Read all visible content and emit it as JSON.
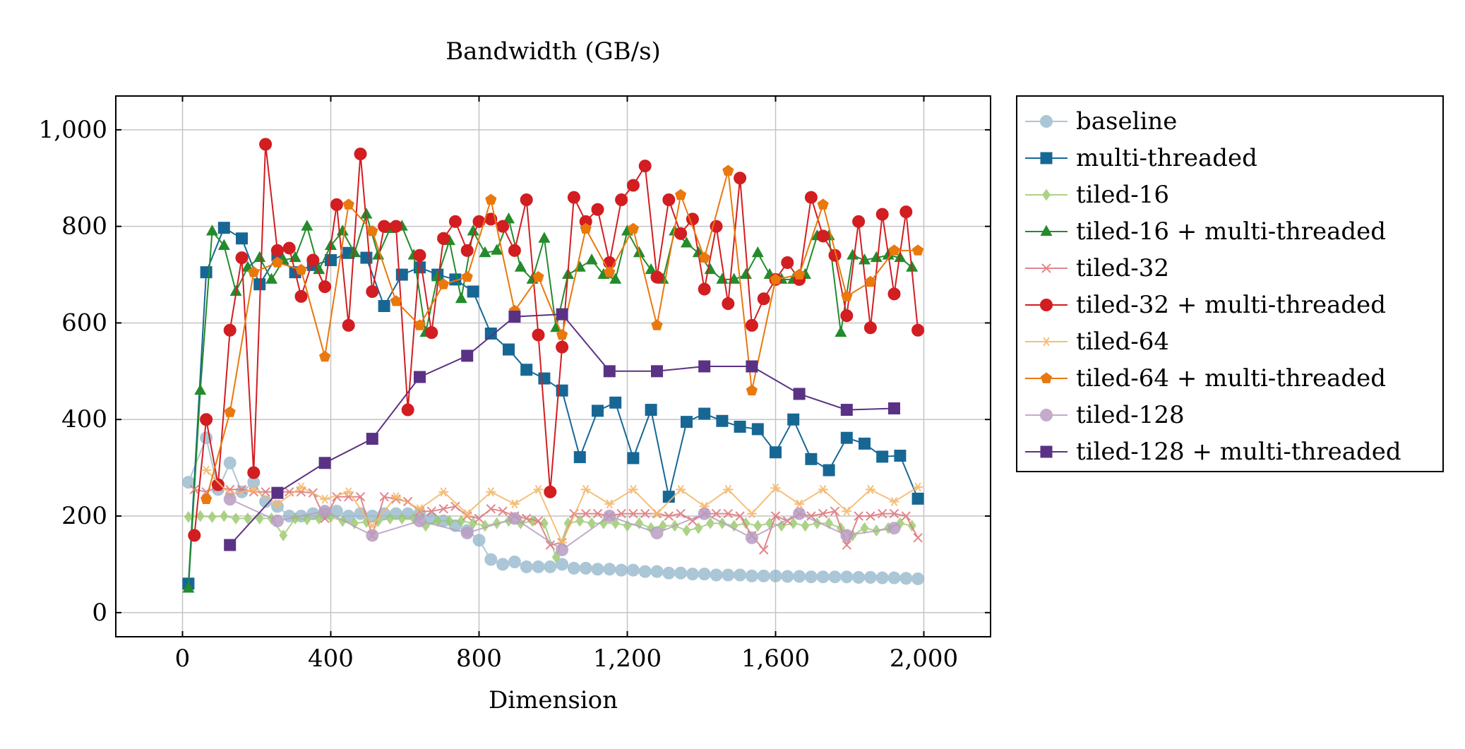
{
  "chart_data": {
    "type": "line",
    "title": "Bandwidth (GB/s)",
    "xlabel": "Dimension",
    "ylabel": "",
    "xlim": [
      -180,
      2180
    ],
    "ylim": [
      -50,
      1070
    ],
    "grid": true,
    "legend_position": "outside-right",
    "x_ticks": [
      0,
      400,
      800,
      1200,
      1600,
      2000
    ],
    "x_tick_labels": [
      "0",
      "400",
      "800",
      "1,200",
      "1,600",
      "2,000"
    ],
    "y_ticks": [
      0,
      200,
      400,
      600,
      800,
      1000
    ],
    "y_tick_labels": [
      "0",
      "200",
      "400",
      "600",
      "800",
      "1,000"
    ],
    "series": [
      {
        "name": "baseline",
        "color": "#8fb3c9",
        "marker": "circle",
        "opacity": 0.75,
        "x": [
          16,
          64,
          96,
          128,
          160,
          192,
          224,
          256,
          288,
          320,
          352,
          384,
          416,
          448,
          480,
          512,
          544,
          576,
          608,
          640,
          672,
          704,
          736,
          768,
          800,
          832,
          864,
          896,
          928,
          960,
          992,
          1024,
          1056,
          1088,
          1120,
          1152,
          1184,
          1216,
          1248,
          1280,
          1312,
          1344,
          1376,
          1408,
          1440,
          1472,
          1504,
          1536,
          1568,
          1600,
          1632,
          1664,
          1696,
          1728,
          1760,
          1792,
          1824,
          1856,
          1888,
          1920,
          1952,
          1984
        ],
        "y": [
          270,
          362,
          255,
          310,
          250,
          270,
          230,
          220,
          200,
          200,
          205,
          205,
          210,
          200,
          205,
          200,
          205,
          205,
          205,
          205,
          195,
          190,
          180,
          170,
          150,
          110,
          100,
          105,
          95,
          95,
          95,
          100,
          92,
          92,
          90,
          90,
          88,
          88,
          85,
          85,
          82,
          82,
          80,
          80,
          78,
          78,
          78,
          76,
          76,
          76,
          75,
          75,
          74,
          74,
          74,
          74,
          73,
          73,
          72,
          72,
          71,
          70
        ]
      },
      {
        "name": "multi-threaded",
        "color": "#176795",
        "marker": "square",
        "opacity": 1,
        "x": [
          16,
          64,
          112,
          160,
          208,
          256,
          304,
          352,
          400,
          448,
          496,
          544,
          592,
          640,
          688,
          736,
          784,
          832,
          880,
          928,
          976,
          1024,
          1072,
          1120,
          1168,
          1216,
          1264,
          1312,
          1360,
          1408,
          1456,
          1504,
          1552,
          1600,
          1648,
          1696,
          1744,
          1792,
          1840,
          1888,
          1936,
          1984
        ],
        "y": [
          60,
          705,
          797,
          775,
          680,
          740,
          705,
          720,
          730,
          745,
          735,
          635,
          700,
          715,
          700,
          690,
          665,
          578,
          545,
          503,
          485,
          460,
          322,
          418,
          435,
          320,
          420,
          240,
          395,
          412,
          397,
          385,
          380,
          332,
          400,
          318,
          295,
          362,
          350,
          323,
          325,
          236
        ]
      },
      {
        "name": "tiled-16",
        "color": "#98c86a",
        "marker": "diamond",
        "opacity": 0.8,
        "x": [
          16,
          48,
          80,
          112,
          144,
          176,
          208,
          240,
          272,
          304,
          336,
          368,
          400,
          432,
          464,
          496,
          528,
          560,
          592,
          624,
          656,
          688,
          720,
          752,
          784,
          816,
          848,
          880,
          912,
          944,
          976,
          1008,
          1040,
          1072,
          1104,
          1136,
          1168,
          1200,
          1232,
          1264,
          1296,
          1328,
          1360,
          1392,
          1424,
          1456,
          1488,
          1520,
          1552,
          1584,
          1616,
          1648,
          1680,
          1712,
          1744,
          1776,
          1808,
          1840,
          1872,
          1904,
          1936,
          1968
        ],
        "y": [
          198,
          200,
          198,
          200,
          195,
          195,
          195,
          195,
          160,
          195,
          193,
          195,
          198,
          190,
          185,
          188,
          190,
          195,
          195,
          195,
          180,
          190,
          190,
          190,
          185,
          180,
          185,
          190,
          185,
          190,
          185,
          115,
          185,
          190,
          185,
          185,
          185,
          180,
          185,
          175,
          180,
          180,
          170,
          175,
          185,
          185,
          180,
          185,
          180,
          185,
          180,
          185,
          180,
          185,
          185,
          175,
          160,
          175,
          170,
          175,
          185,
          180
        ]
      },
      {
        "name": "tiled-16 + multi-threaded",
        "color": "#238b2b",
        "marker": "triangle",
        "opacity": 1,
        "x": [
          16,
          48,
          80,
          112,
          144,
          176,
          208,
          240,
          272,
          304,
          336,
          368,
          400,
          432,
          464,
          496,
          528,
          560,
          592,
          624,
          656,
          688,
          720,
          752,
          784,
          816,
          848,
          880,
          912,
          944,
          976,
          1008,
          1040,
          1072,
          1104,
          1136,
          1168,
          1200,
          1232,
          1264,
          1296,
          1328,
          1360,
          1392,
          1424,
          1456,
          1488,
          1520,
          1552,
          1584,
          1616,
          1648,
          1680,
          1712,
          1744,
          1776,
          1808,
          1840,
          1872,
          1904,
          1936,
          1968
        ],
        "y": [
          50,
          460,
          790,
          760,
          665,
          715,
          735,
          690,
          730,
          735,
          800,
          710,
          760,
          790,
          745,
          825,
          740,
          795,
          800,
          740,
          580,
          695,
          770,
          650,
          790,
          745,
          750,
          815,
          715,
          690,
          775,
          590,
          700,
          715,
          730,
          700,
          690,
          790,
          745,
          710,
          690,
          790,
          765,
          745,
          710,
          690,
          690,
          700,
          745,
          700,
          690,
          690,
          700,
          780,
          780,
          580,
          740,
          730,
          735,
          740,
          735,
          715
        ]
      },
      {
        "name": "tiled-32",
        "color": "#de7b7f",
        "marker": "x",
        "opacity": 0.9,
        "x": [
          32,
          64,
          96,
          128,
          160,
          192,
          224,
          256,
          288,
          320,
          352,
          384,
          416,
          448,
          480,
          512,
          544,
          576,
          608,
          640,
          672,
          704,
          736,
          768,
          800,
          832,
          864,
          896,
          928,
          960,
          992,
          1024,
          1056,
          1088,
          1120,
          1152,
          1184,
          1216,
          1248,
          1280,
          1312,
          1344,
          1376,
          1408,
          1440,
          1472,
          1504,
          1536,
          1568,
          1600,
          1632,
          1664,
          1696,
          1728,
          1760,
          1792,
          1824,
          1856,
          1888,
          1920,
          1952,
          1984
        ],
        "y": [
          255,
          250,
          260,
          255,
          255,
          250,
          250,
          250,
          250,
          250,
          248,
          195,
          240,
          240,
          240,
          160,
          240,
          235,
          230,
          210,
          210,
          215,
          220,
          200,
          195,
          215,
          210,
          200,
          195,
          190,
          140,
          145,
          205,
          205,
          205,
          200,
          205,
          205,
          205,
          205,
          200,
          205,
          190,
          205,
          205,
          205,
          200,
          160,
          130,
          200,
          190,
          205,
          200,
          205,
          210,
          140,
          200,
          200,
          205,
          205,
          200,
          155
        ]
      },
      {
        "name": "tiled-32 + multi-threaded",
        "color": "#d21d21",
        "marker": "circle",
        "opacity": 1,
        "x": [
          32,
          64,
          96,
          128,
          160,
          192,
          224,
          256,
          288,
          320,
          352,
          384,
          416,
          448,
          480,
          512,
          544,
          576,
          608,
          640,
          672,
          704,
          736,
          768,
          800,
          832,
          864,
          896,
          928,
          960,
          992,
          1024,
          1056,
          1088,
          1120,
          1152,
          1184,
          1216,
          1248,
          1280,
          1312,
          1344,
          1376,
          1408,
          1440,
          1472,
          1504,
          1536,
          1568,
          1600,
          1632,
          1664,
          1696,
          1728,
          1760,
          1792,
          1824,
          1856,
          1888,
          1920,
          1952,
          1984
        ],
        "y": [
          160,
          400,
          265,
          585,
          735,
          290,
          970,
          750,
          755,
          655,
          730,
          675,
          845,
          595,
          950,
          665,
          800,
          800,
          420,
          740,
          580,
          775,
          810,
          750,
          810,
          815,
          800,
          750,
          855,
          575,
          250,
          550,
          860,
          810,
          835,
          725,
          855,
          885,
          925,
          695,
          855,
          785,
          815,
          670,
          800,
          640,
          900,
          595,
          650,
          690,
          725,
          690,
          860,
          780,
          740,
          615,
          810,
          590,
          825,
          660,
          830,
          585
        ]
      },
      {
        "name": "tiled-64",
        "color": "#f4b96b",
        "marker": "star",
        "opacity": 0.9,
        "x": [
          64,
          128,
          192,
          256,
          320,
          384,
          448,
          512,
          576,
          640,
          704,
          768,
          832,
          896,
          960,
          1024,
          1088,
          1152,
          1216,
          1280,
          1344,
          1408,
          1472,
          1536,
          1600,
          1664,
          1728,
          1792,
          1856,
          1920,
          1984
        ],
        "y": [
          295,
          245,
          255,
          225,
          260,
          235,
          250,
          180,
          240,
          215,
          250,
          205,
          250,
          225,
          255,
          145,
          255,
          225,
          255,
          205,
          255,
          220,
          255,
          205,
          258,
          225,
          255,
          210,
          255,
          230,
          260
        ]
      },
      {
        "name": "tiled-64 + multi-threaded",
        "color": "#e9780d",
        "marker": "pentagon",
        "opacity": 1,
        "x": [
          64,
          128,
          192,
          256,
          320,
          384,
          448,
          512,
          576,
          640,
          704,
          768,
          832,
          896,
          960,
          1024,
          1088,
          1152,
          1216,
          1280,
          1344,
          1408,
          1472,
          1536,
          1600,
          1664,
          1728,
          1792,
          1856,
          1920,
          1984
        ],
        "y": [
          235,
          415,
          705,
          725,
          710,
          530,
          845,
          790,
          645,
          595,
          680,
          695,
          855,
          625,
          695,
          575,
          795,
          705,
          795,
          595,
          865,
          735,
          915,
          460,
          690,
          700,
          845,
          655,
          685,
          750,
          750
        ]
      },
      {
        "name": "tiled-128",
        "color": "#b89dc3",
        "marker": "circle",
        "opacity": 0.85,
        "x": [
          128,
          256,
          384,
          512,
          640,
          768,
          896,
          1024,
          1152,
          1280,
          1408,
          1536,
          1664,
          1792,
          1920
        ],
        "y": [
          235,
          190,
          210,
          160,
          190,
          165,
          195,
          130,
          200,
          165,
          205,
          155,
          205,
          160,
          175
        ]
      },
      {
        "name": "tiled-128 + multi-threaded",
        "color": "#5a3285",
        "marker": "square",
        "opacity": 1,
        "x": [
          128,
          256,
          384,
          512,
          640,
          768,
          896,
          1024,
          1152,
          1280,
          1408,
          1536,
          1664,
          1792,
          1920
        ],
        "y": [
          140,
          248,
          310,
          360,
          488,
          532,
          613,
          618,
          500,
          500,
          510,
          510,
          453,
          420,
          423
        ]
      }
    ]
  }
}
